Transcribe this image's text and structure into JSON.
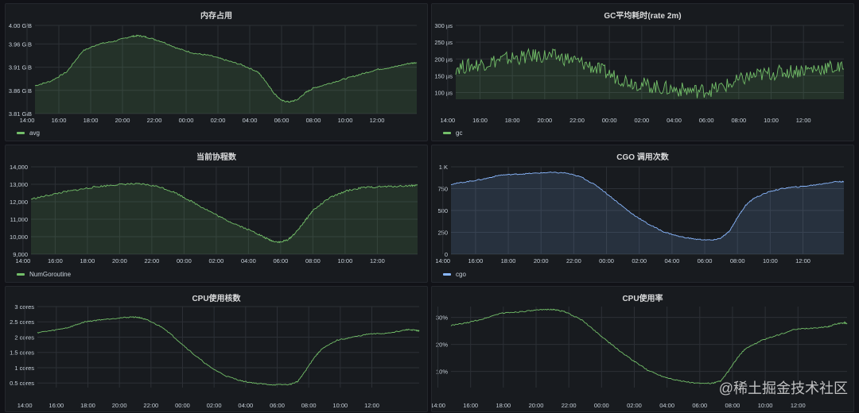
{
  "watermark": "@稀土掘金技术社区",
  "chart_data": [
    {
      "type": "area",
      "title": "内存占用",
      "legend": [
        "avg"
      ],
      "color": "#73bf69",
      "y_ticks": [
        "3.81 GiB",
        "3.86 GiB",
        "3.91 GiB",
        "3.96 GiB",
        "4.00 GiB"
      ],
      "ylim": [
        3.81,
        4.0
      ],
      "x_ticks": [
        "16:00",
        "18:00",
        "20:00",
        "22:00",
        "00:00",
        "02:00",
        "04:00",
        "06:00",
        "08:00",
        "10:00",
        "12:00",
        "14:00"
      ],
      "xlim": [
        14.5,
        38.5
      ],
      "noise": 0.0015,
      "series": [
        {
          "name": "avg",
          "x": [
            14.5,
            15.5,
            16.5,
            17.5,
            18.5,
            19.5,
            20.5,
            21,
            21.5,
            22.5,
            23.5,
            24.5,
            25.5,
            26.5,
            27.5,
            28.5,
            29,
            29.5,
            30,
            30.5,
            31,
            31.5,
            32,
            33,
            34,
            35,
            36,
            37,
            38,
            38.5
          ],
          "y": [
            3.87,
            3.88,
            3.9,
            3.945,
            3.96,
            3.966,
            3.976,
            3.978,
            3.975,
            3.965,
            3.95,
            3.94,
            3.935,
            3.925,
            3.915,
            3.9,
            3.88,
            3.855,
            3.838,
            3.835,
            3.84,
            3.855,
            3.865,
            3.875,
            3.885,
            3.895,
            3.905,
            3.91,
            3.918,
            3.92
          ]
        }
      ]
    },
    {
      "type": "area",
      "title": "GC平均耗时(rate 2m)",
      "legend": [
        "gc"
      ],
      "color": "#73bf69",
      "y_ticks": [
        "100 μs",
        "150 μs",
        "200 μs",
        "250 μs",
        "300 μs"
      ],
      "ylim": [
        80,
        300
      ],
      "x_ticks": [
        "16:00",
        "18:00",
        "20:00",
        "22:00",
        "00:00",
        "02:00",
        "04:00",
        "06:00",
        "08:00",
        "10:00",
        "12:00",
        "14:00"
      ],
      "xlim": [
        14.5,
        38.5
      ],
      "noise": 22,
      "series": [
        {
          "name": "gc",
          "x": [
            14.5,
            15.5,
            16.5,
            17.5,
            18.5,
            19.5,
            20.5,
            21.5,
            22.5,
            23.5,
            24.5,
            25.5,
            26.5,
            27.5,
            28.5,
            29.5,
            30.5,
            31.5,
            32.5,
            33.5,
            34.5,
            35.5,
            36.5,
            37.5,
            38.5
          ],
          "y": [
            175,
            180,
            190,
            200,
            205,
            210,
            208,
            200,
            185,
            165,
            145,
            130,
            120,
            112,
            108,
            105,
            110,
            125,
            145,
            155,
            160,
            165,
            170,
            175,
            170
          ]
        }
      ]
    },
    {
      "type": "area",
      "title": "当前协程数",
      "legend": [
        "NumGoroutine"
      ],
      "color": "#73bf69",
      "y_ticks": [
        "9,000",
        "10,000",
        "11,000",
        "12,000",
        "13,000",
        "14,000"
      ],
      "ylim": [
        9000,
        14000
      ],
      "x_ticks": [
        "16:00",
        "18:00",
        "20:00",
        "22:00",
        "00:00",
        "02:00",
        "04:00",
        "06:00",
        "08:00",
        "10:00",
        "12:00",
        "14:00"
      ],
      "xlim": [
        14.5,
        38.5
      ],
      "noise": 50,
      "series": [
        {
          "name": "NumGoroutine",
          "x": [
            14.5,
            15.5,
            16.5,
            17.5,
            18.5,
            19.5,
            20.5,
            21.5,
            22.5,
            23.5,
            24.5,
            25.5,
            26.5,
            27.5,
            28.5,
            29,
            29.5,
            30,
            30.5,
            31,
            31.5,
            32,
            33,
            34,
            35,
            36,
            37,
            38,
            38.5
          ],
          "y": [
            12150,
            12350,
            12550,
            12700,
            12850,
            12950,
            13020,
            13000,
            12850,
            12500,
            12000,
            11500,
            11000,
            10600,
            10200,
            9950,
            9750,
            9680,
            9850,
            10300,
            10900,
            11500,
            12200,
            12600,
            12800,
            12850,
            12880,
            12920,
            12950
          ]
        }
      ]
    },
    {
      "type": "area",
      "title": "CGO 调用次数",
      "legend": [
        "cgo"
      ],
      "color": "#8ab8ff",
      "y_ticks": [
        "0",
        "250",
        "500",
        "750",
        "1 K"
      ],
      "ylim": [
        0,
        1000
      ],
      "x_ticks": [
        "16:00",
        "18:00",
        "20:00",
        "22:00",
        "00:00",
        "02:00",
        "04:00",
        "06:00",
        "08:00",
        "10:00",
        "12:00",
        "14:00"
      ],
      "xlim": [
        14.5,
        38.5
      ],
      "noise": 6,
      "series": [
        {
          "name": "cgo",
          "x": [
            14.5,
            15.5,
            16.5,
            17.5,
            18.5,
            19.5,
            20.5,
            21.5,
            22.5,
            23.5,
            24.5,
            25.5,
            26.5,
            27.5,
            28.5,
            29.5,
            30.5,
            31,
            31.5,
            32,
            32.5,
            33,
            34,
            35,
            36,
            37,
            38,
            38.5
          ],
          "y": [
            800,
            830,
            860,
            905,
            915,
            925,
            935,
            930,
            880,
            770,
            620,
            470,
            350,
            255,
            200,
            170,
            160,
            185,
            260,
            420,
            560,
            640,
            720,
            760,
            775,
            800,
            830,
            830
          ]
        }
      ]
    },
    {
      "type": "line",
      "title": "CPU使用核数",
      "legend": [],
      "color": "#73bf69",
      "y_ticks": [
        "0.5 cores",
        "1 cores",
        "1.5 cores",
        "2 cores",
        "2.5 cores",
        "3 cores"
      ],
      "ylim": [
        0.35,
        3.0
      ],
      "x_ticks": [
        "16:00",
        "18:00",
        "20:00",
        "22:00",
        "00:00",
        "02:00",
        "04:00",
        "06:00",
        "08:00",
        "10:00",
        "12:00",
        "14:00"
      ],
      "xlim": [
        14.8,
        39.0
      ],
      "noise": 0.018,
      "series": [
        {
          "name": "",
          "x": [
            14.8,
            15.8,
            16.8,
            17.8,
            18.8,
            19.8,
            20.8,
            21.3,
            21.8,
            22.8,
            23.8,
            24.8,
            25.8,
            26.8,
            27.8,
            28.8,
            29.8,
            30.8,
            31.3,
            31.8,
            32.3,
            32.8,
            33.8,
            34.8,
            35.8,
            36.8,
            37.8,
            38.3,
            38.8,
            39.0
          ],
          "y": [
            2.15,
            2.22,
            2.32,
            2.5,
            2.57,
            2.62,
            2.66,
            2.64,
            2.55,
            2.3,
            1.85,
            1.4,
            1.0,
            0.72,
            0.56,
            0.48,
            0.44,
            0.45,
            0.55,
            0.9,
            1.3,
            1.6,
            1.9,
            2.0,
            2.1,
            2.12,
            2.2,
            2.25,
            2.22,
            2.2
          ]
        }
      ]
    },
    {
      "type": "line",
      "title": "CPU使用率",
      "legend": [],
      "color": "#73bf69",
      "y_ticks": [
        "10%",
        "20%",
        "30%"
      ],
      "ylim": [
        4,
        34
      ],
      "x_ticks": [
        "16:00",
        "18:00",
        "20:00",
        "22:00",
        "00:00",
        "02:00",
        "04:00",
        "06:00",
        "08:00",
        "10:00",
        "12:00",
        "14:00"
      ],
      "xlim": [
        14.8,
        39.0
      ],
      "noise": 0.22,
      "series": [
        {
          "name": "",
          "x": [
            14.8,
            15.8,
            16.8,
            17.8,
            18.8,
            19.8,
            20.8,
            21.3,
            21.8,
            22.8,
            23.8,
            24.8,
            25.8,
            26.8,
            27.8,
            28.8,
            29.8,
            30.8,
            31.3,
            31.8,
            32.3,
            32.8,
            33.8,
            34.8,
            35.8,
            36.8,
            37.8,
            38.3,
            38.8,
            39.0
          ],
          "y": [
            27,
            28,
            29.5,
            31.5,
            32,
            32.5,
            33,
            32.7,
            32,
            29,
            24,
            19,
            14.5,
            10.5,
            8,
            6.5,
            5.6,
            5.6,
            6.5,
            10.5,
            15,
            18.5,
            21.5,
            23.5,
            25.5,
            26,
            26.5,
            27.5,
            28,
            27.8
          ]
        }
      ]
    }
  ]
}
